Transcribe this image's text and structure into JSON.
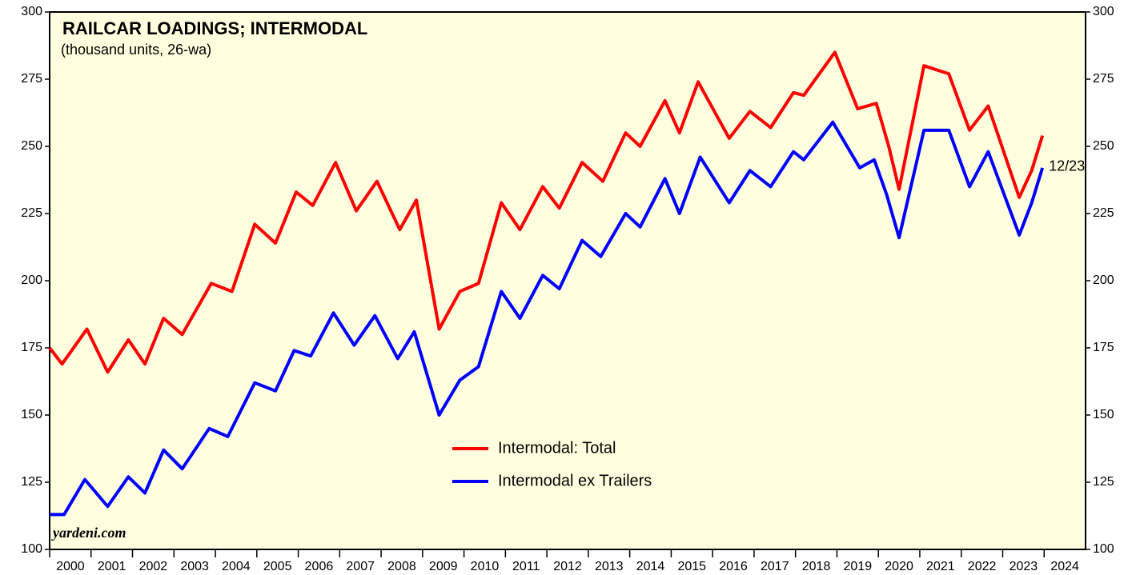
{
  "chart_data": {
    "type": "line",
    "title": "RAILCAR LOADINGS; INTERMODAL",
    "subtitle": "(thousand units, 26-wa)",
    "source": "yardeni.com",
    "annotation": "12/23",
    "xlim": [
      2000,
      2025
    ],
    "xticks": [
      2000,
      2001,
      2002,
      2003,
      2004,
      2005,
      2006,
      2007,
      2008,
      2009,
      2010,
      2011,
      2012,
      2013,
      2014,
      2015,
      2016,
      2017,
      2018,
      2019,
      2020,
      2021,
      2022,
      2023,
      2024
    ],
    "ylim": [
      100,
      300
    ],
    "yticks": [
      100,
      125,
      150,
      175,
      200,
      225,
      250,
      275,
      300
    ],
    "background": "#ffffe0",
    "series": [
      {
        "name": "Intermodal: Total",
        "color": "#ff0000",
        "x": [
          2000.0,
          2000.3,
          2000.9,
          2001.4,
          2001.9,
          2002.3,
          2002.75,
          2003.2,
          2003.9,
          2004.4,
          2004.95,
          2005.45,
          2005.95,
          2006.35,
          2006.9,
          2007.4,
          2007.9,
          2008.45,
          2008.85,
          2009.4,
          2009.9,
          2010.35,
          2010.9,
          2011.35,
          2011.9,
          2012.3,
          2012.85,
          2013.35,
          2013.9,
          2014.25,
          2014.85,
          2015.2,
          2015.65,
          2016.4,
          2016.9,
          2017.4,
          2017.95,
          2018.2,
          2018.95,
          2019.5,
          2019.95,
          2020.25,
          2020.5,
          2021.1,
          2021.7,
          2022.2,
          2022.65,
          2023.4,
          2023.7,
          2023.96
        ],
        "values": [
          175,
          169,
          182,
          166,
          178,
          169,
          186,
          180,
          199,
          196,
          221,
          214,
          233,
          228,
          244,
          226,
          237,
          219,
          230,
          182,
          196,
          199,
          229,
          219,
          235,
          227,
          244,
          237,
          255,
          250,
          267,
          255,
          274,
          253,
          263,
          257,
          270,
          269,
          285,
          264,
          266,
          250,
          234,
          280,
          277,
          256,
          265,
          231,
          241,
          254
        ]
      },
      {
        "name": "Intermodal ex Trailers",
        "color": "#0000ff",
        "x": [
          2000.0,
          2000.35,
          2000.85,
          2001.4,
          2001.9,
          2002.3,
          2002.75,
          2003.2,
          2003.85,
          2004.3,
          2004.95,
          2005.45,
          2005.9,
          2006.3,
          2006.85,
          2007.35,
          2007.85,
          2008.4,
          2008.8,
          2009.4,
          2009.9,
          2010.35,
          2010.9,
          2011.35,
          2011.9,
          2012.3,
          2012.85,
          2013.3,
          2013.9,
          2014.25,
          2014.85,
          2015.2,
          2015.7,
          2016.4,
          2016.9,
          2017.4,
          2017.95,
          2018.2,
          2018.9,
          2019.55,
          2019.9,
          2020.2,
          2020.5,
          2021.1,
          2021.7,
          2022.2,
          2022.65,
          2023.4,
          2023.7,
          2023.96
        ],
        "values": [
          113,
          113,
          126,
          116,
          127,
          121,
          137,
          130,
          145,
          142,
          162,
          159,
          174,
          172,
          188,
          176,
          187,
          171,
          181,
          150,
          163,
          168,
          196,
          186,
          202,
          197,
          215,
          209,
          225,
          220,
          238,
          225,
          246,
          229,
          241,
          235,
          248,
          245,
          259,
          242,
          245,
          232,
          216,
          256,
          256,
          235,
          248,
          217,
          229,
          242
        ]
      }
    ]
  }
}
